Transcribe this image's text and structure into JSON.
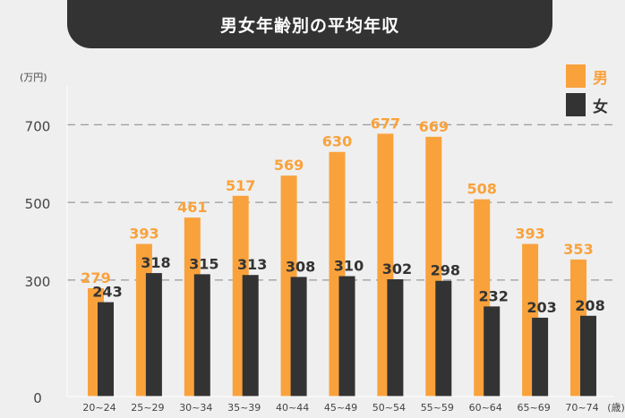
{
  "title": "男女年齢別の平均年収",
  "unit_label": "(万円)",
  "x_unit_label": "(歳)",
  "colors": {
    "male": "#f9a23c",
    "female": "#333333",
    "grid": "#9a9a9a",
    "title_bg": "#333333"
  },
  "legend": [
    {
      "name": "男",
      "color": "#f9a23c"
    },
    {
      "name": "女",
      "color": "#333333"
    }
  ],
  "chart_data": {
    "type": "bar",
    "title": "男女年齢別の平均年収",
    "categories": [
      "20~24",
      "25~29",
      "30~34",
      "35~39",
      "40~44",
      "45~49",
      "50~54",
      "55~59",
      "60~64",
      "65~69",
      "70~74"
    ],
    "series": [
      {
        "name": "男",
        "values": [
          279,
          393,
          461,
          517,
          569,
          630,
          677,
          669,
          508,
          393,
          353
        ]
      },
      {
        "name": "女",
        "values": [
          243,
          318,
          315,
          313,
          308,
          310,
          302,
          298,
          232,
          203,
          208
        ]
      }
    ],
    "y_ticks": [
      0,
      300,
      500,
      700
    ],
    "ylim": [
      0,
      800
    ],
    "ylabel": "(万円)",
    "xlabel": "(歳)",
    "grid": true,
    "legend_position": "top-right"
  }
}
